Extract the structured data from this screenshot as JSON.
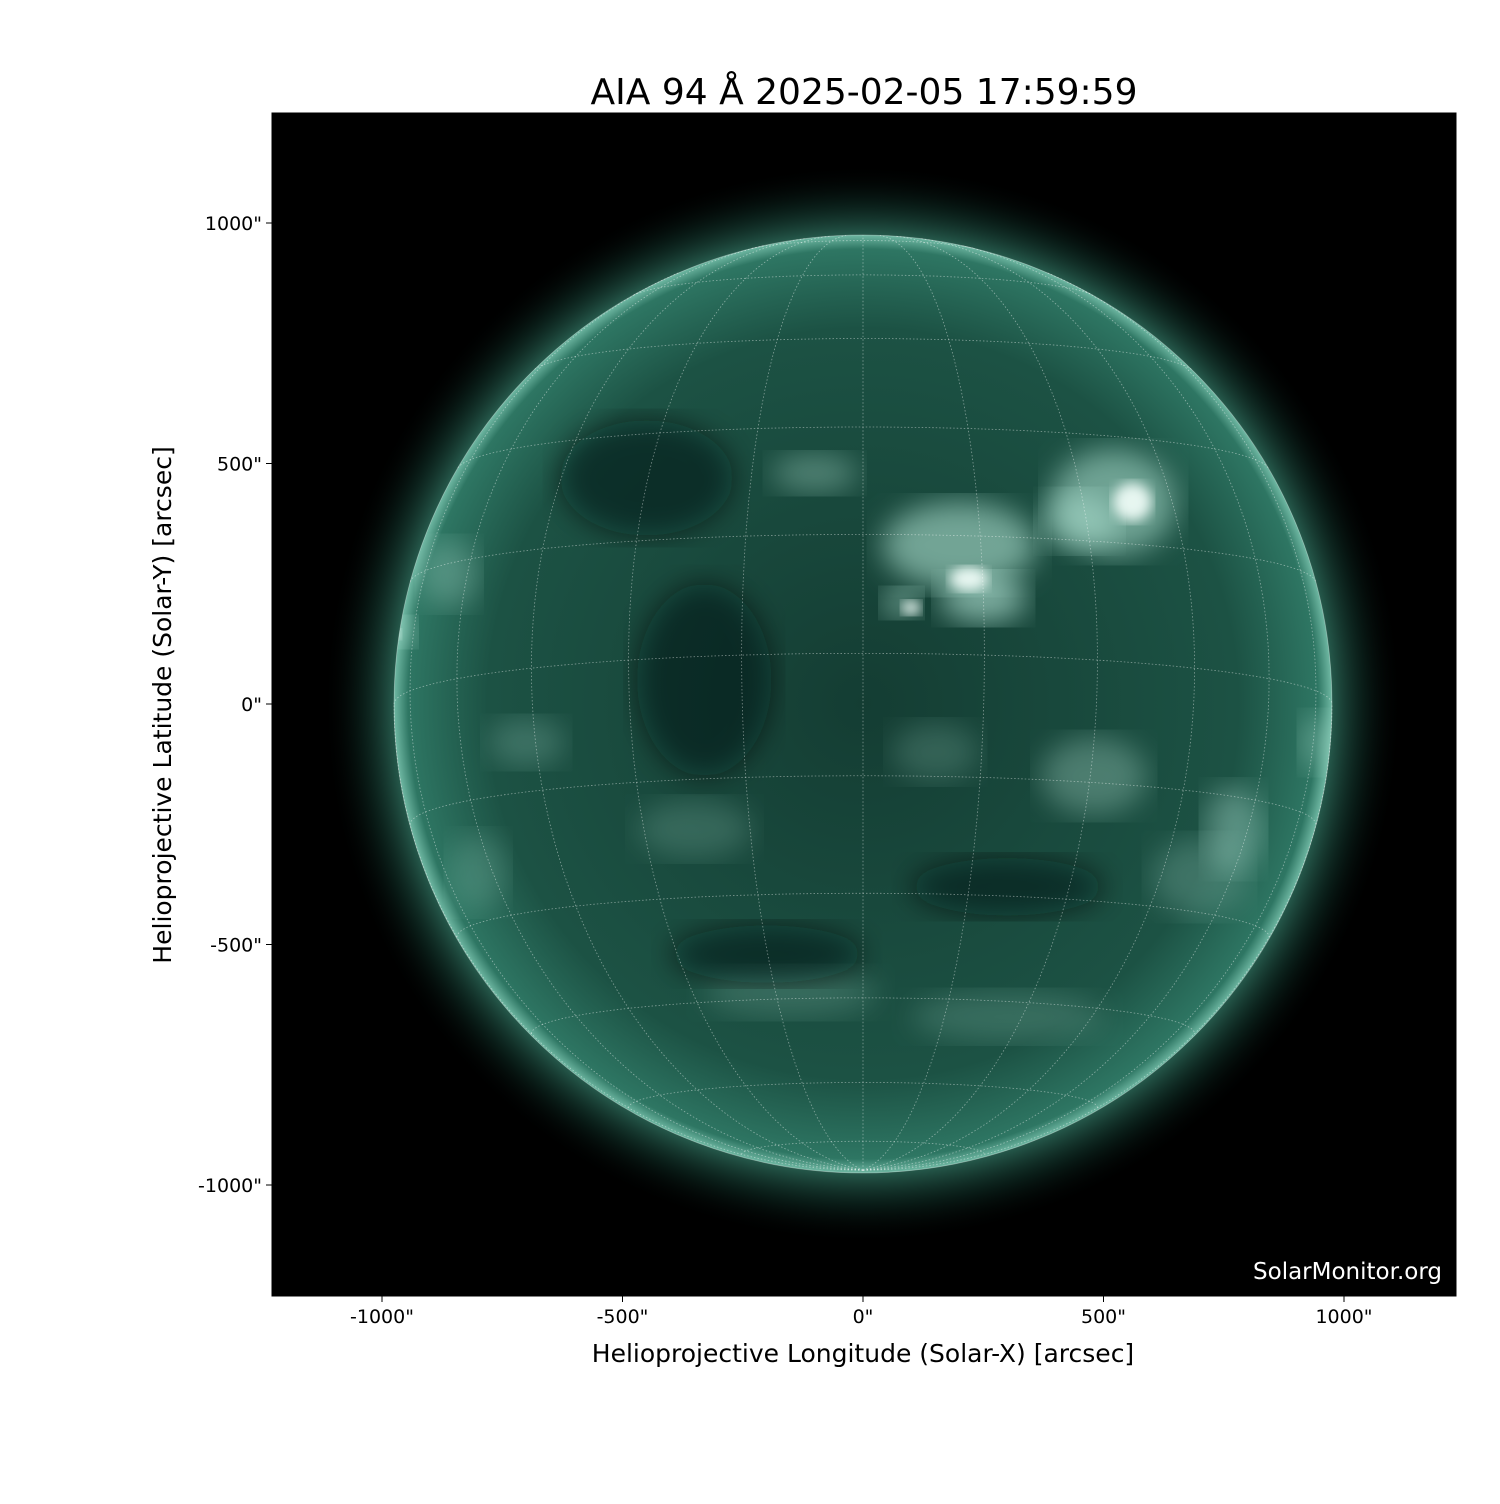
{
  "chart_data": {
    "type": "heatmap",
    "title": "AIA 94 Å 2025-02-05 17:59:59",
    "xlabel": "Helioprojective Longitude (Solar-X) [arcsec]",
    "ylabel": "Helioprojective Latitude (Solar-Y) [arcsec]",
    "xlim": [
      -1230,
      1230
    ],
    "ylim": [
      -1230,
      1230
    ],
    "x_ticks": [
      -1000,
      -500,
      0,
      500,
      1000
    ],
    "y_ticks": [
      -1000,
      -500,
      0,
      500,
      1000
    ],
    "x_tick_labels": [
      "-1000\"",
      "-500\"",
      "0\"",
      "500\"",
      "1000\""
    ],
    "y_tick_labels": [
      "-1000\"",
      "-500\"",
      "0\"",
      "500\"",
      "1000\""
    ],
    "solar_radius_arcsec": 975,
    "grid": true,
    "colormap": "sdoaia94",
    "colors": {
      "background": "#000000",
      "disk": "#1f5a4c",
      "bright": "#e8fff6",
      "grid": "#ffffff"
    },
    "watermark": "SolarMonitor.org"
  }
}
